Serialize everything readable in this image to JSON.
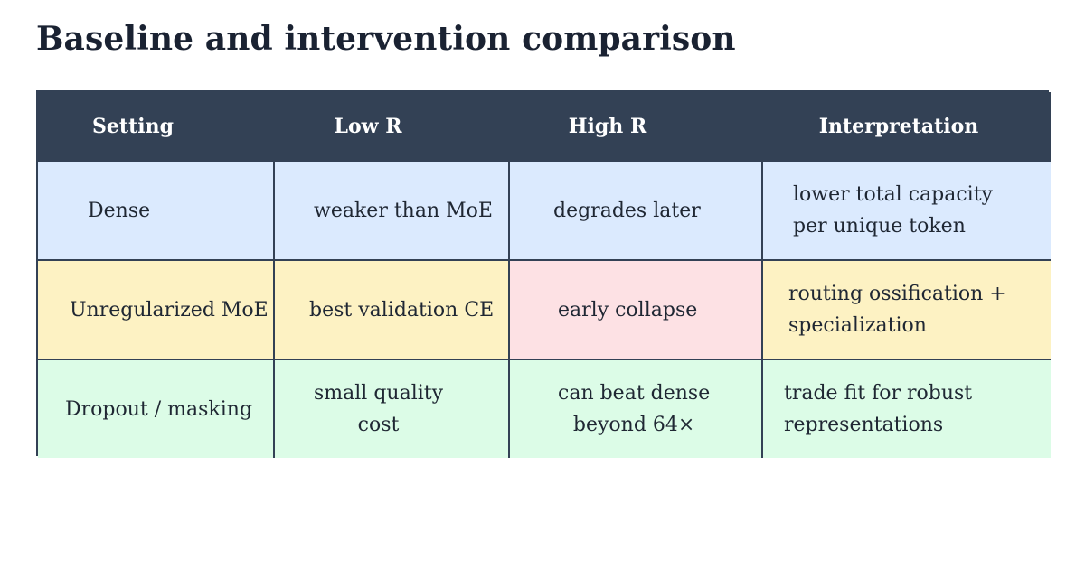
{
  "title": "Baseline and intervention comparison",
  "table": {
    "headers": [
      "Setting",
      "Low R",
      "High R",
      "Interpretation"
    ],
    "rows": [
      {
        "setting": "Dense",
        "low_r": "weaker than MoE",
        "high_r": "degrades later",
        "interpretation_lines": [
          "lower total capacity",
          "per unique token"
        ],
        "row_color": "#dbeafe"
      },
      {
        "setting": "Unregularized MoE",
        "low_r": "best validation CE",
        "high_r": "early collapse",
        "interpretation_lines": [
          "routing ossification +",
          "specialization"
        ],
        "row_color": "#fdf2c3",
        "high_r_color": "#fde1e4"
      },
      {
        "setting": "Dropout / masking",
        "low_r_lines": [
          "small quality",
          "cost"
        ],
        "high_r_lines": [
          "can beat dense",
          "beyond 64×"
        ],
        "interpretation_lines": [
          "trade fit for robust",
          "representations"
        ],
        "row_color": "#dcfce7"
      }
    ]
  },
  "colors": {
    "header_bg": "#334155",
    "header_text": "#ffffff",
    "title_text": "#1a2232"
  }
}
